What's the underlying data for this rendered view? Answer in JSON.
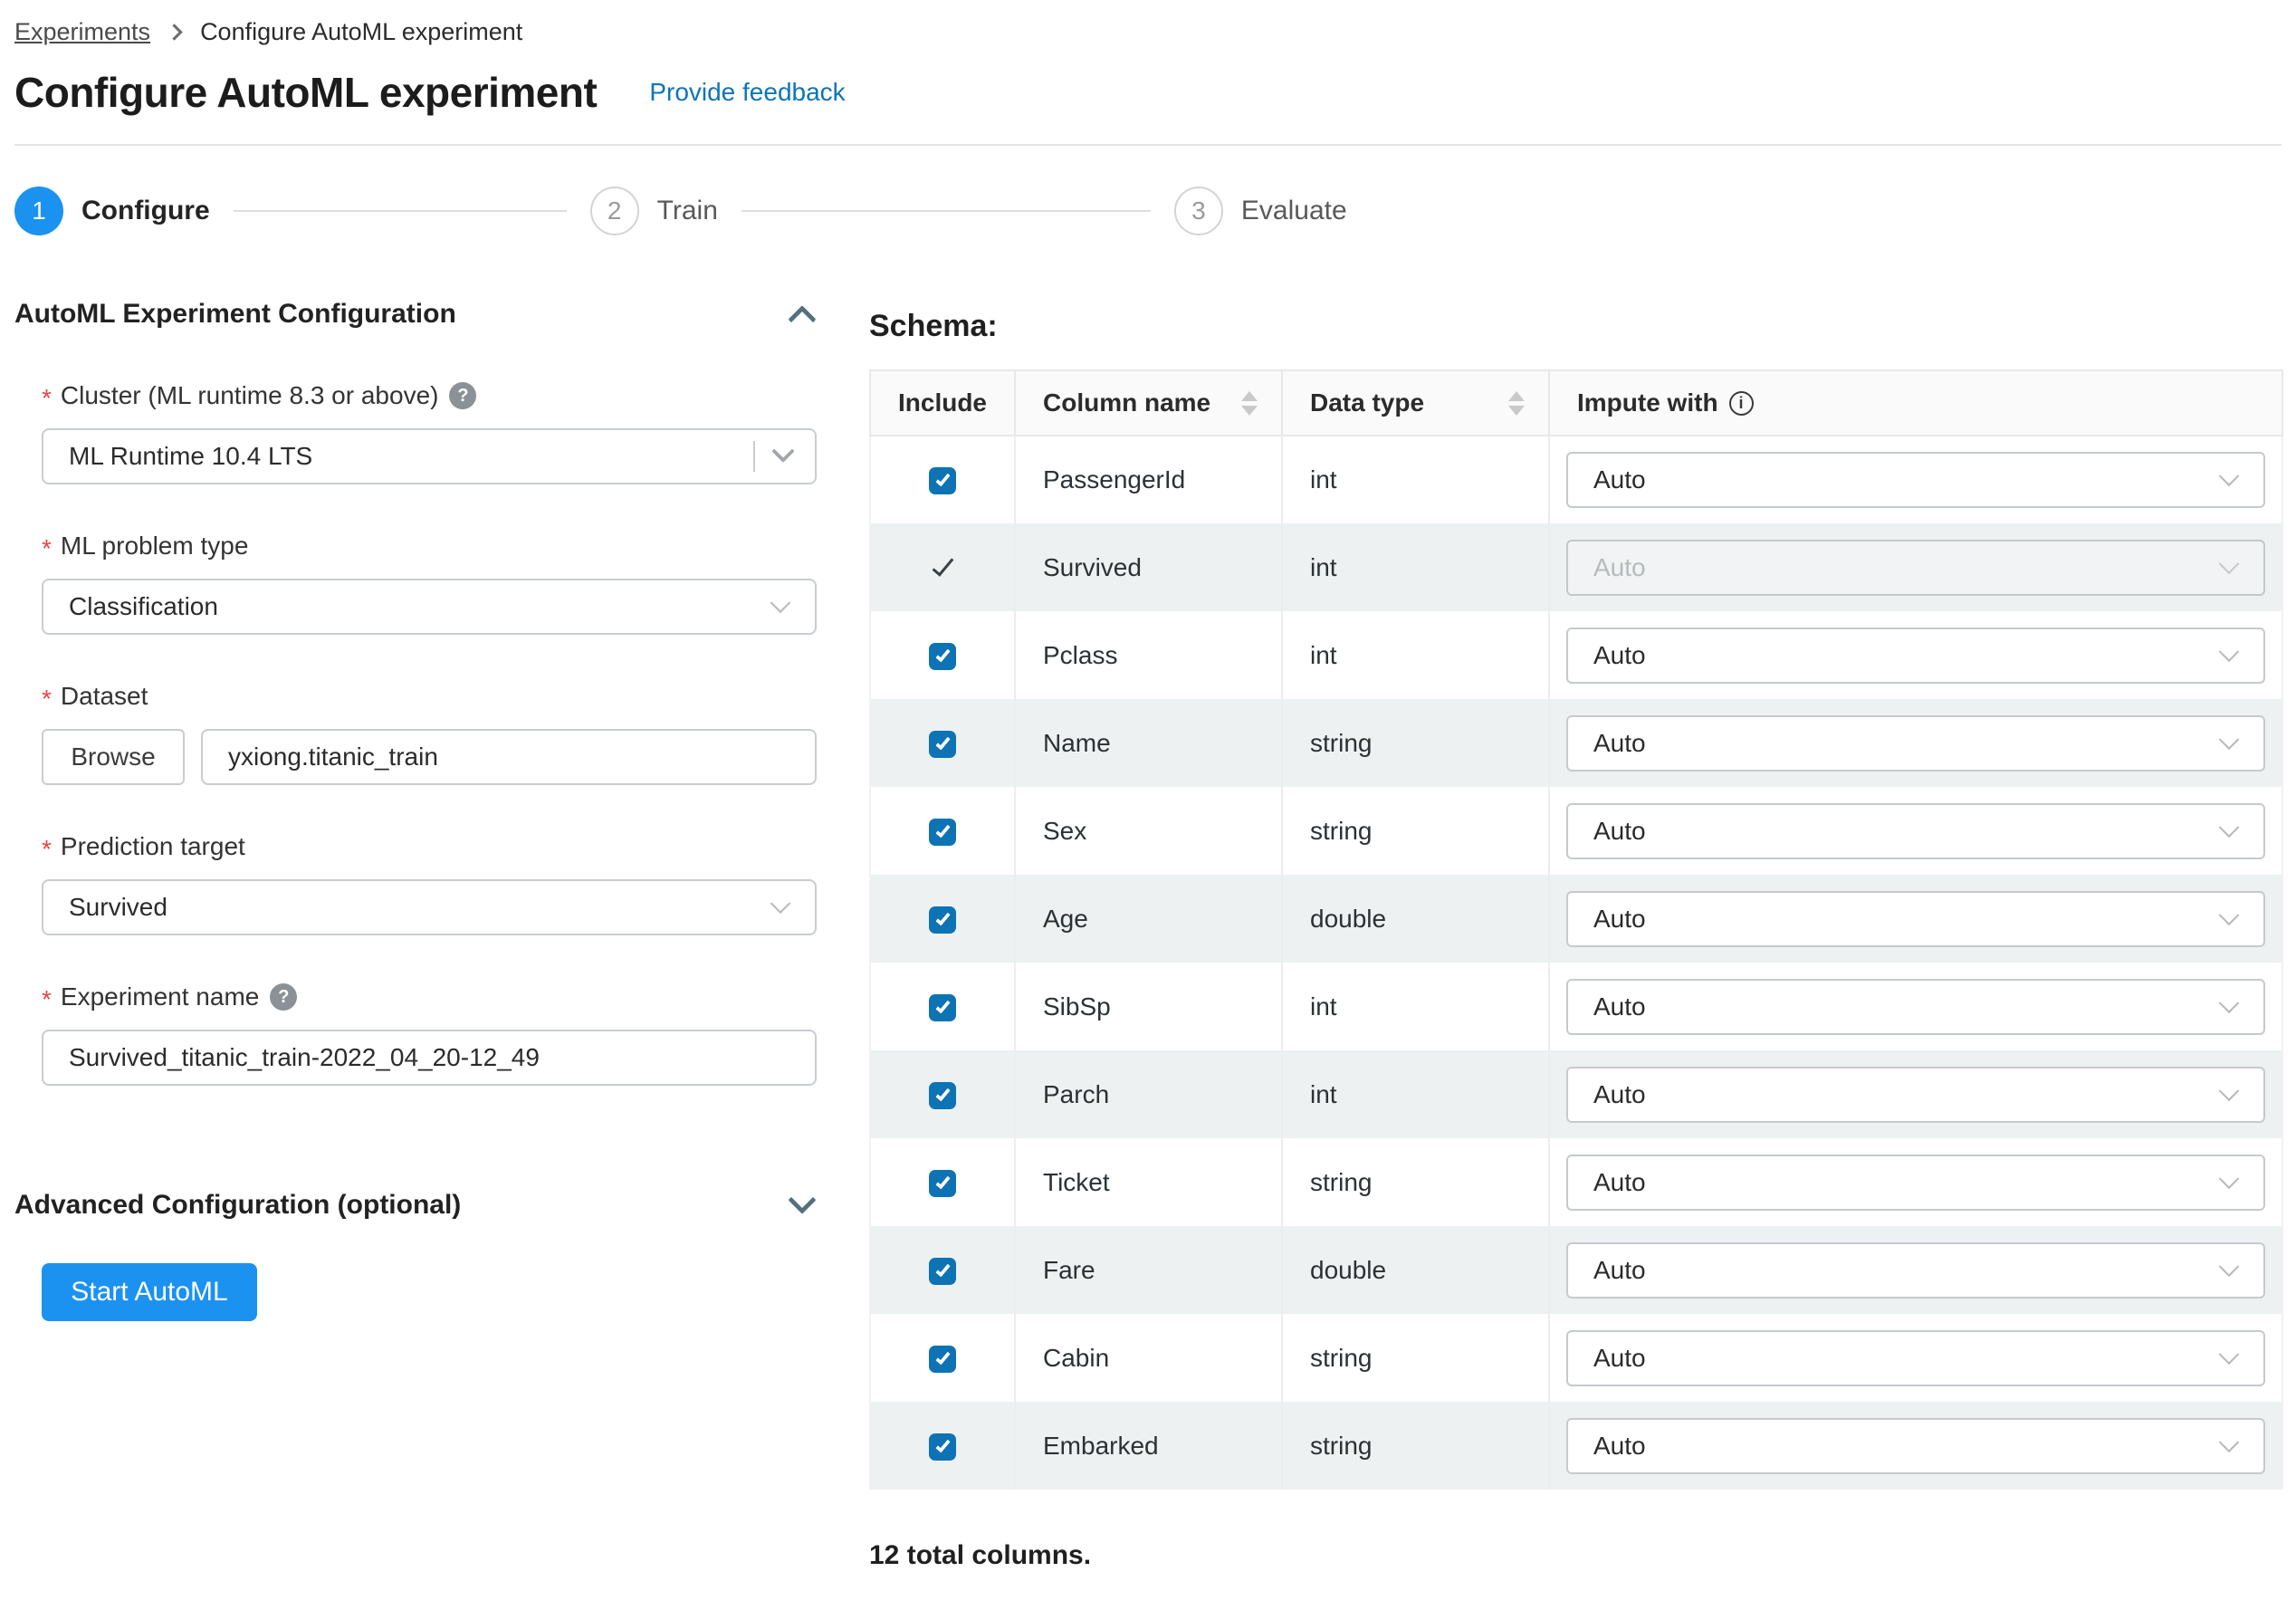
{
  "breadcrumb": {
    "parent": "Experiments",
    "current": "Configure AutoML experiment"
  },
  "header": {
    "title": "Configure AutoML experiment",
    "feedback_link": "Provide feedback"
  },
  "stepper": {
    "steps": [
      {
        "number": "1",
        "label": "Configure",
        "state": "active"
      },
      {
        "number": "2",
        "label": "Train",
        "state": "pending"
      },
      {
        "number": "3",
        "label": "Evaluate",
        "state": "pending"
      }
    ]
  },
  "form": {
    "section_title": "AutoML Experiment Configuration",
    "cluster": {
      "label": "Cluster (ML runtime 8.3 or above)",
      "value": "ML Runtime 10.4 LTS"
    },
    "problem_type": {
      "label": "ML problem type",
      "value": "Classification"
    },
    "dataset": {
      "label": "Dataset",
      "browse_label": "Browse",
      "value": "yxiong.titanic_train"
    },
    "prediction_target": {
      "label": "Prediction target",
      "value": "Survived"
    },
    "experiment_name": {
      "label": "Experiment name",
      "value": "Survived_titanic_train-2022_04_20-12_49"
    },
    "advanced_title": "Advanced Configuration (optional)",
    "start_button": "Start AutoML"
  },
  "icons": {
    "help": "?",
    "info": "i"
  },
  "schema": {
    "title": "Schema:",
    "columns": [
      "Include",
      "Column name",
      "Data type",
      "Impute with"
    ],
    "rows": [
      {
        "include": "checkbox",
        "name": "PassengerId",
        "type": "int",
        "impute": "Auto",
        "impute_disabled": false
      },
      {
        "include": "check",
        "name": "Survived",
        "type": "int",
        "impute": "Auto",
        "impute_disabled": true
      },
      {
        "include": "checkbox",
        "name": "Pclass",
        "type": "int",
        "impute": "Auto",
        "impute_disabled": false
      },
      {
        "include": "checkbox",
        "name": "Name",
        "type": "string",
        "impute": "Auto",
        "impute_disabled": false
      },
      {
        "include": "checkbox",
        "name": "Sex",
        "type": "string",
        "impute": "Auto",
        "impute_disabled": false
      },
      {
        "include": "checkbox",
        "name": "Age",
        "type": "double",
        "impute": "Auto",
        "impute_disabled": false
      },
      {
        "include": "checkbox",
        "name": "SibSp",
        "type": "int",
        "impute": "Auto",
        "impute_disabled": false
      },
      {
        "include": "checkbox",
        "name": "Parch",
        "type": "int",
        "impute": "Auto",
        "impute_disabled": false
      },
      {
        "include": "checkbox",
        "name": "Ticket",
        "type": "string",
        "impute": "Auto",
        "impute_disabled": false
      },
      {
        "include": "checkbox",
        "name": "Fare",
        "type": "double",
        "impute": "Auto",
        "impute_disabled": false
      },
      {
        "include": "checkbox",
        "name": "Cabin",
        "type": "string",
        "impute": "Auto",
        "impute_disabled": false
      },
      {
        "include": "checkbox",
        "name": "Embarked",
        "type": "string",
        "impute": "Auto",
        "impute_disabled": false
      }
    ],
    "footer": "12 total columns."
  },
  "colors": {
    "accent_blue": "#1b92f0",
    "checkbox_blue": "#0e73b5",
    "link_blue": "#0d74b8",
    "row_stripe": "#eef1f2"
  }
}
